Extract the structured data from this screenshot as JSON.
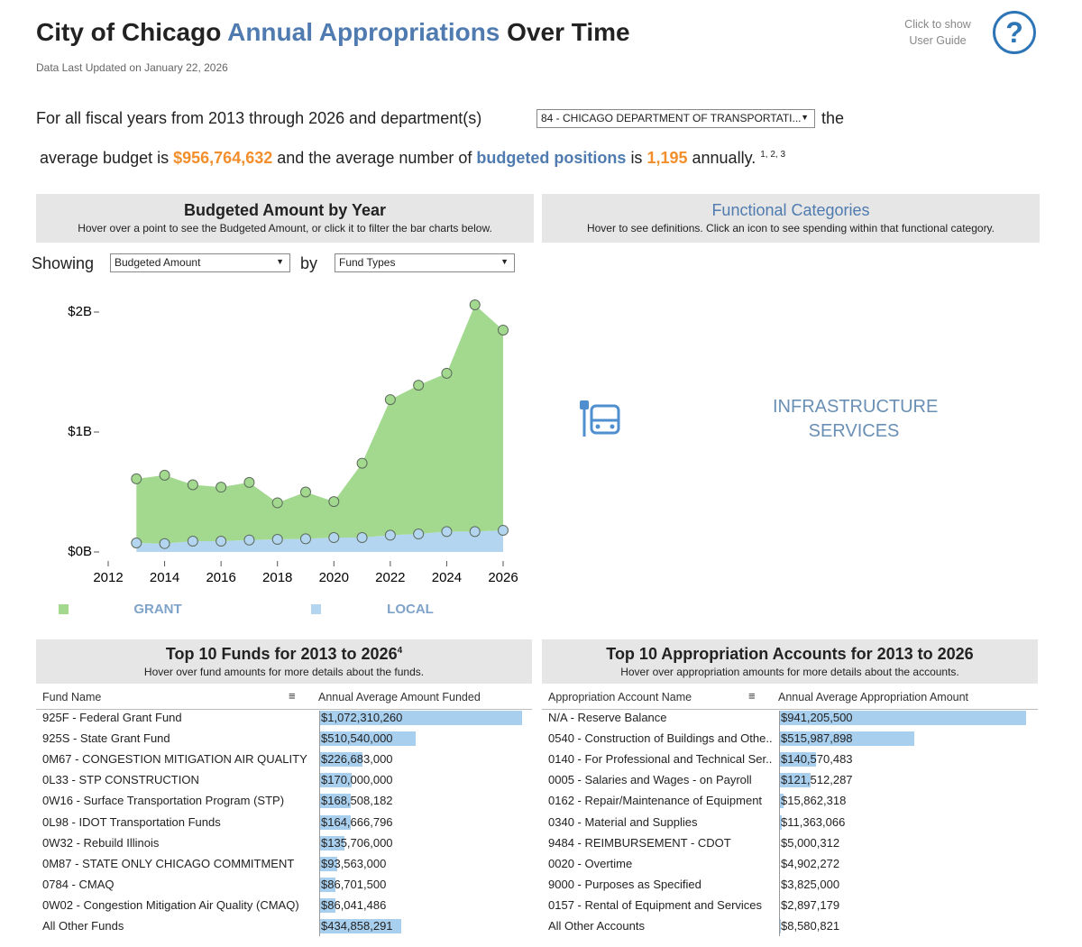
{
  "header": {
    "title_part1": "City of Chicago",
    "title_part2": "Annual Appropriations",
    "title_part3": "Over Time",
    "updated": "Data Last Updated on January 22, 2026",
    "guide_line1": "Click to show",
    "guide_line2": "User Guide",
    "guide_icon": "?"
  },
  "summary": {
    "text1": "For all fiscal years from 2013 through 2026 and department(s)",
    "department": "84 - CHICAGO DEPARTMENT OF TRANSPORTATI...",
    "text2": "the",
    "text3": "average budget is",
    "average_budget": "$956,764,632",
    "text4": "and the average number of",
    "positions_link": "budgeted positions",
    "text5": "is",
    "average_positions": "1,195",
    "text6": "annually.",
    "footnotes": "1, 2, 3"
  },
  "chart_panel": {
    "title": "Budgeted Amount by Year",
    "subtitle": "Hover over a point to see the Budgeted Amount, or click it to filter the bar charts below.",
    "showing_label": "Showing",
    "measure": "Budgeted Amount",
    "by_label": "by",
    "dimension": "Fund Types"
  },
  "chart_data": {
    "type": "stacked-area",
    "x": [
      2013,
      2014,
      2015,
      2016,
      2017,
      2018,
      2019,
      2020,
      2021,
      2022,
      2023,
      2024,
      2025,
      2026
    ],
    "series": [
      {
        "name": "LOCAL",
        "color": "#b3d5f0",
        "values": [
          0.075,
          0.07,
          0.09,
          0.09,
          0.1,
          0.105,
          0.11,
          0.12,
          0.12,
          0.14,
          0.15,
          0.17,
          0.17,
          0.18
        ]
      },
      {
        "name": "GRANT",
        "color": "#a3d98f",
        "values": [
          0.535,
          0.57,
          0.47,
          0.45,
          0.48,
          0.305,
          0.39,
          0.3,
          0.62,
          1.13,
          1.24,
          1.32,
          1.89,
          1.67
        ]
      }
    ],
    "xlim": [
      2012,
      2026
    ],
    "xticks": [
      2012,
      2014,
      2016,
      2018,
      2020,
      2022,
      2024,
      2026
    ],
    "ylim": [
      0,
      2
    ],
    "yticks": [
      {
        "value": 0,
        "label": "$0B"
      },
      {
        "value": 1,
        "label": "$1B"
      },
      {
        "value": 2,
        "label": "$2B"
      }
    ]
  },
  "categories_panel": {
    "title": "Functional Categories",
    "subtitle": "Hover to see definitions. Click an icon to see spending within that functional category.",
    "category": "INFRASTRUCTURE SERVICES"
  },
  "funds": {
    "title": "Top 10 Funds for 2013 to 2026",
    "footnote": "4",
    "subtitle": "Hover over fund amounts for more details about the funds.",
    "columns": [
      "Fund Name",
      "Annual Average Amount Funded"
    ],
    "rows": [
      {
        "name": "925F - Federal Grant Fund",
        "amount": 1072310260,
        "amount_label": "$1,072,310,260"
      },
      {
        "name": "925S - State Grant Fund",
        "amount": 510540000,
        "amount_label": "$510,540,000"
      },
      {
        "name": "0M67 - CONGESTION MITIGATION AIR QUALITY",
        "amount": 226683000,
        "amount_label": "$226,683,000"
      },
      {
        "name": "0L33 - STP CONSTRUCTION",
        "amount": 170000000,
        "amount_label": "$170,000,000"
      },
      {
        "name": "0W16 - Surface Transportation Program (STP)",
        "amount": 168508182,
        "amount_label": "$168,508,182"
      },
      {
        "name": "0L98 - IDOT Transportation Funds",
        "amount": 164666796,
        "amount_label": "$164,666,796"
      },
      {
        "name": "0W32 - Rebuild Illinois",
        "amount": 135706000,
        "amount_label": "$135,706,000"
      },
      {
        "name": "0M87 - STATE ONLY CHICAGO COMMITMENT",
        "amount": 93563000,
        "amount_label": "$93,563,000"
      },
      {
        "name": "0784 - CMAQ",
        "amount": 86701500,
        "amount_label": "$86,701,500"
      },
      {
        "name": "0W02 - Congestion Mitigation Air Quality (CMAQ)",
        "amount": 86041486,
        "amount_label": "$86,041,486"
      },
      {
        "name": "All Other Funds",
        "amount": 434858291,
        "amount_label": "$434,858,291"
      }
    ]
  },
  "accounts": {
    "title": "Top 10 Appropriation Accounts for 2013 to 2026",
    "subtitle": "Hover over appropriation amounts for more details about the accounts.",
    "columns": [
      "Appropriation Account Name",
      "Annual Average Appropriation Amount"
    ],
    "rows": [
      {
        "name": "N/A - Reserve Balance",
        "amount": 941205500,
        "amount_label": "$941,205,500"
      },
      {
        "name": "0540 - Construction of Buildings and Othe..",
        "amount": 515987898,
        "amount_label": "$515,987,898"
      },
      {
        "name": "0140 - For Professional and Technical Ser..",
        "amount": 140570483,
        "amount_label": "$140,570,483"
      },
      {
        "name": "0005 - Salaries and Wages - on Payroll",
        "amount": 121512287,
        "amount_label": "$121,512,287"
      },
      {
        "name": "0162 - Repair/Maintenance of Equipment",
        "amount": 15862318,
        "amount_label": "$15,862,318"
      },
      {
        "name": "0340 - Material and Supplies",
        "amount": 11363066,
        "amount_label": "$11,363,066"
      },
      {
        "name": "9484 - REIMBURSEMENT - CDOT",
        "amount": 5000312,
        "amount_label": "$5,000,312"
      },
      {
        "name": "0020 - Overtime",
        "amount": 4902272,
        "amount_label": "$4,902,272"
      },
      {
        "name": "9000 - Purposes as Specified",
        "amount": 3825000,
        "amount_label": "$3,825,000"
      },
      {
        "name": "0157 - Rental of Equipment and Services",
        "amount": 2897179,
        "amount_label": "$2,897,179"
      },
      {
        "name": "All Other Accounts",
        "amount": 8580821,
        "amount_label": "$8,580,821"
      }
    ]
  }
}
